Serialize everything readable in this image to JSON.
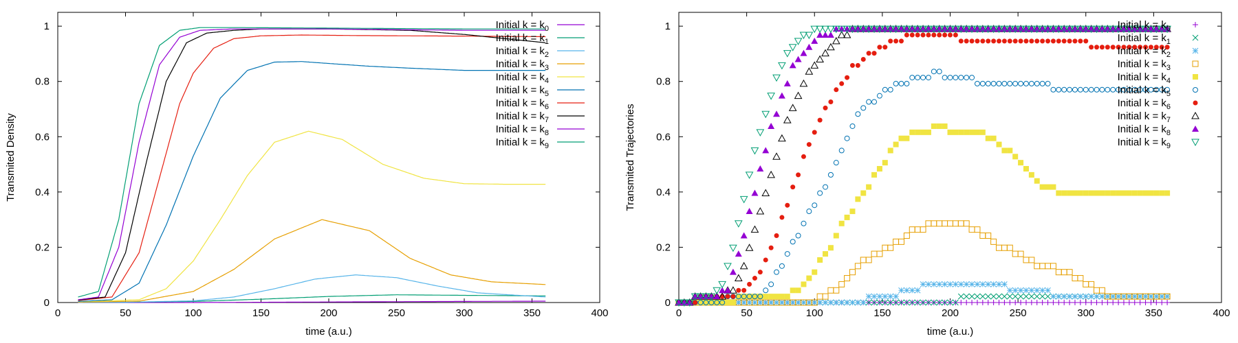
{
  "colors": [
    "#9400d3",
    "#009e73",
    "#56b4e9",
    "#e69f00",
    "#f0e442",
    "#0072b2",
    "#e51e10",
    "#000000",
    "#9400d3",
    "#009e73"
  ],
  "legend_prefix": "Initial k = k",
  "chart_data": [
    {
      "type": "line",
      "xlabel": "time (a.u.)",
      "ylabel": "Transmited Density",
      "xlim": [
        0,
        400
      ],
      "ylim": [
        0,
        1.05
      ],
      "xticks": [
        0,
        50,
        100,
        150,
        200,
        250,
        300,
        350,
        400
      ],
      "yticks": [
        0,
        0.2,
        0.4,
        0.6,
        0.8,
        1
      ],
      "ytick_labels": [
        "0",
        "0.2",
        "0.4",
        "0.6",
        "0.8",
        "1"
      ],
      "legend_placement": "top-right",
      "grid": false,
      "series": [
        {
          "name": "0",
          "x": [
            0,
            100,
            200,
            300,
            360
          ],
          "y": [
            0,
            0,
            0.002,
            0.004,
            0.005
          ]
        },
        {
          "name": "1",
          "x": [
            0,
            50,
            100,
            150,
            200,
            250,
            300,
            360
          ],
          "y": [
            0,
            0.001,
            0.004,
            0.012,
            0.022,
            0.028,
            0.026,
            0.024
          ]
        },
        {
          "name": "2",
          "x": [
            0,
            50,
            100,
            130,
            160,
            190,
            220,
            250,
            280,
            310,
            360
          ],
          "y": [
            0,
            0.001,
            0.006,
            0.02,
            0.05,
            0.085,
            0.1,
            0.09,
            0.06,
            0.035,
            0.02
          ]
        },
        {
          "name": "3",
          "x": [
            0,
            60,
            100,
            130,
            160,
            195,
            230,
            260,
            290,
            320,
            360
          ],
          "y": [
            0,
            0.005,
            0.04,
            0.12,
            0.23,
            0.3,
            0.26,
            0.16,
            0.1,
            0.075,
            0.065
          ]
        },
        {
          "name": "4",
          "x": [
            0,
            60,
            80,
            100,
            120,
            140,
            160,
            185,
            210,
            240,
            270,
            300,
            330,
            360
          ],
          "y": [
            0,
            0.01,
            0.05,
            0.15,
            0.3,
            0.46,
            0.58,
            0.62,
            0.59,
            0.5,
            0.45,
            0.43,
            0.428,
            0.428
          ]
        },
        {
          "name": "5",
          "x": [
            0,
            40,
            60,
            80,
            100,
            120,
            140,
            160,
            180,
            200,
            230,
            260,
            300,
            330,
            360
          ],
          "y": [
            0,
            0.01,
            0.07,
            0.28,
            0.53,
            0.74,
            0.84,
            0.87,
            0.872,
            0.865,
            0.855,
            0.848,
            0.84,
            0.84,
            0.84
          ]
        },
        {
          "name": "6",
          "x": [
            0,
            40,
            60,
            75,
            90,
            100,
            115,
            130,
            150,
            180,
            220,
            260,
            300,
            330,
            360
          ],
          "y": [
            0,
            0.02,
            0.18,
            0.45,
            0.72,
            0.83,
            0.92,
            0.955,
            0.965,
            0.968,
            0.966,
            0.965,
            0.964,
            0.963,
            0.962
          ]
        },
        {
          "name": "7",
          "x": [
            0,
            35,
            50,
            65,
            80,
            95,
            110,
            130,
            150,
            200,
            260,
            300,
            330,
            360
          ],
          "y": [
            0,
            0.02,
            0.18,
            0.5,
            0.8,
            0.94,
            0.975,
            0.985,
            0.99,
            0.99,
            0.985,
            0.97,
            0.955,
            0.94
          ]
        },
        {
          "name": "8",
          "x": [
            0,
            30,
            45,
            60,
            75,
            90,
            105,
            130,
            200,
            300,
            360
          ],
          "y": [
            0,
            0.02,
            0.2,
            0.58,
            0.86,
            0.96,
            0.985,
            0.99,
            0.99,
            0.985,
            0.985
          ]
        },
        {
          "name": "9",
          "x": [
            0,
            30,
            45,
            60,
            75,
            90,
            105,
            130,
            200,
            300,
            360
          ],
          "y": [
            0,
            0.04,
            0.3,
            0.72,
            0.93,
            0.985,
            0.995,
            0.995,
            0.993,
            0.99,
            0.99
          ]
        }
      ]
    },
    {
      "type": "scatter",
      "xlabel": "time (a.u.)",
      "ylabel": "Transmited Trajectories",
      "xlim": [
        0,
        400
      ],
      "ylim": [
        0,
        1.05
      ],
      "xticks": [
        0,
        50,
        100,
        150,
        200,
        250,
        300,
        350,
        400
      ],
      "yticks": [
        0,
        0.2,
        0.4,
        0.6,
        0.8,
        1
      ],
      "ytick_labels": [
        "0",
        "0.2",
        "0.4",
        "0.6",
        "0.8",
        "1"
      ],
      "legend_placement": "top-right",
      "grid": false,
      "series": [
        {
          "name": "0",
          "marker": "plus",
          "x": [
            0,
            100,
            200,
            300,
            360
          ],
          "y": [
            0,
            0,
            0,
            0,
            0
          ]
        },
        {
          "name": "1",
          "marker": "cross",
          "x": [
            0,
            150,
            200,
            210,
            260,
            300,
            360
          ],
          "y": [
            0,
            0,
            0,
            0.015,
            0.015,
            0.015,
            0.015
          ]
        },
        {
          "name": "2",
          "marker": "asterisk",
          "x": [
            0,
            120,
            150,
            160,
            170,
            180,
            190,
            220,
            250,
            260,
            290,
            320,
            360
          ],
          "y": [
            0,
            0,
            0.02,
            0.03,
            0.045,
            0.055,
            0.065,
            0.065,
            0.05,
            0.04,
            0.025,
            0.015,
            0.015
          ]
        },
        {
          "name": "3",
          "marker": "open-square",
          "x": [
            0,
            70,
            100,
            115,
            125,
            135,
            145,
            160,
            170,
            185,
            210,
            225,
            235,
            250,
            265,
            290,
            300,
            310,
            325,
            340,
            360
          ],
          "y": [
            0,
            0,
            0.01,
            0.04,
            0.09,
            0.14,
            0.18,
            0.21,
            0.25,
            0.28,
            0.28,
            0.25,
            0.2,
            0.18,
            0.14,
            0.1,
            0.07,
            0.04,
            0.02,
            0.015,
            0.015
          ]
        },
        {
          "name": "4",
          "marker": "filled-square",
          "x": [
            0,
            80,
            90,
            100,
            110,
            120,
            130,
            140,
            150,
            160,
            175,
            190,
            210,
            230,
            240,
            250,
            260,
            270,
            280,
            300,
            320,
            340,
            360
          ],
          "y": [
            0,
            0.02,
            0.06,
            0.12,
            0.18,
            0.28,
            0.35,
            0.42,
            0.5,
            0.58,
            0.62,
            0.63,
            0.62,
            0.6,
            0.56,
            0.52,
            0.46,
            0.42,
            0.4,
            0.4,
            0.4,
            0.385,
            0.385
          ]
        },
        {
          "name": "5",
          "marker": "open-circle",
          "x": [
            0,
            60,
            70,
            80,
            90,
            100,
            110,
            120,
            130,
            140,
            150,
            160,
            175,
            190,
            200,
            220,
            240,
            280,
            300,
            320,
            360
          ],
          "y": [
            0,
            0.02,
            0.08,
            0.18,
            0.26,
            0.36,
            0.44,
            0.56,
            0.66,
            0.72,
            0.76,
            0.79,
            0.81,
            0.83,
            0.82,
            0.8,
            0.785,
            0.78,
            0.77,
            0.765,
            0.765
          ]
        },
        {
          "name": "6",
          "marker": "filled-circle",
          "x": [
            0,
            50,
            60,
            70,
            80,
            90,
            100,
            110,
            120,
            130,
            140,
            150,
            160,
            170,
            190,
            210,
            240,
            270,
            300,
            330,
            360
          ],
          "y": [
            0,
            0.04,
            0.12,
            0.22,
            0.36,
            0.5,
            0.62,
            0.72,
            0.8,
            0.86,
            0.9,
            0.93,
            0.95,
            0.96,
            0.965,
            0.955,
            0.95,
            0.945,
            0.935,
            0.92,
            0.915
          ]
        },
        {
          "name": "7",
          "marker": "open-triangle",
          "x": [
            0,
            40,
            50,
            60,
            70,
            80,
            90,
            100,
            110,
            120,
            130,
            150,
            180,
            220,
            260,
            300,
            360
          ],
          "y": [
            0,
            0.04,
            0.16,
            0.32,
            0.5,
            0.66,
            0.78,
            0.86,
            0.92,
            0.96,
            0.985,
            0.99,
            0.995,
            0.99,
            0.99,
            0.985,
            0.985
          ]
        },
        {
          "name": "8",
          "marker": "filled-triangle",
          "x": [
            0,
            35,
            45,
            55,
            65,
            75,
            85,
            95,
            105,
            120,
            150,
            200,
            250,
            300,
            360
          ],
          "y": [
            0,
            0.04,
            0.18,
            0.38,
            0.58,
            0.74,
            0.86,
            0.93,
            0.97,
            0.985,
            0.99,
            0.99,
            0.985,
            0.985,
            0.985
          ]
        },
        {
          "name": "9",
          "marker": "open-down-triangle",
          "x": [
            0,
            30,
            40,
            50,
            60,
            70,
            80,
            90,
            100,
            110,
            140,
            200,
            260,
            300,
            360
          ],
          "y": [
            0,
            0.04,
            0.2,
            0.42,
            0.62,
            0.78,
            0.9,
            0.96,
            0.985,
            0.995,
            0.995,
            0.99,
            0.99,
            0.99,
            0.99
          ]
        }
      ]
    }
  ]
}
